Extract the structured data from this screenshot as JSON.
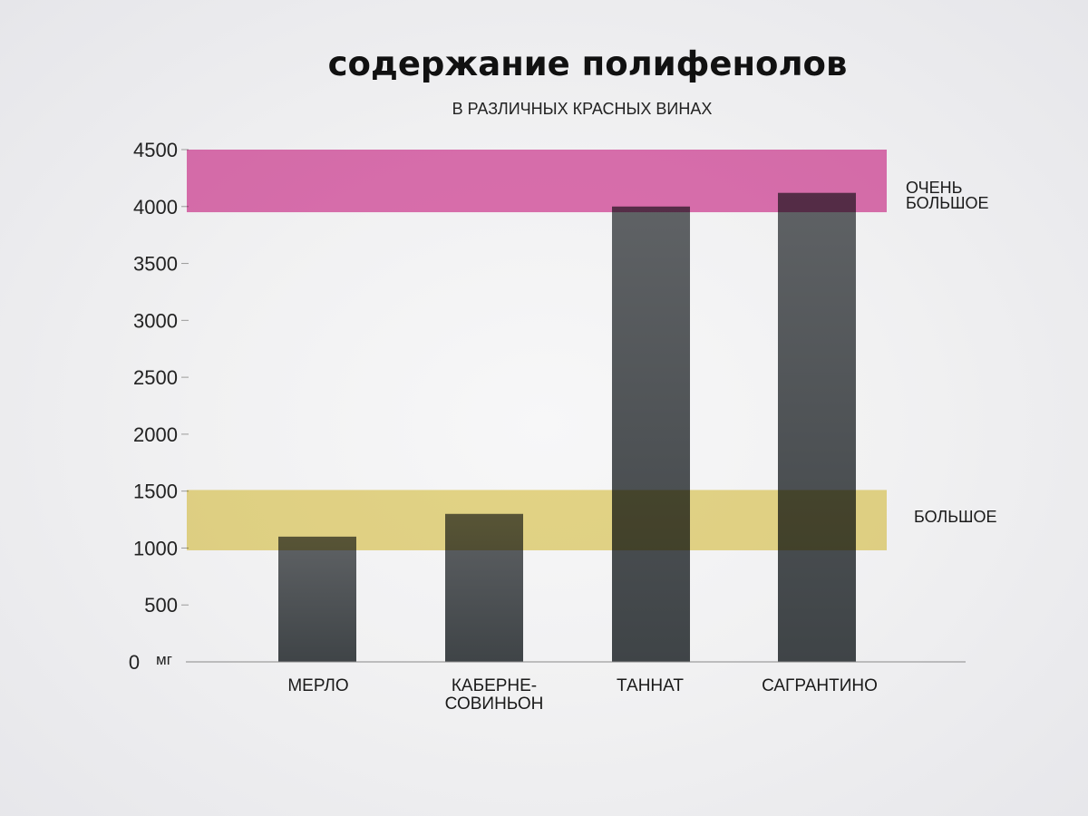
{
  "chart_data": {
    "type": "bar",
    "title": "содержание полифенолов",
    "subtitle": "В РАЗЛИЧНЫХ КРАСНЫХ ВИНАХ",
    "unit": "мг",
    "categories": [
      {
        "label_lines": [
          "МЕРЛО"
        ]
      },
      {
        "label_lines": [
          "КАБЕРНЕ-",
          "СОВИНЬОН"
        ]
      },
      {
        "label_lines": [
          "ТАННАТ"
        ]
      },
      {
        "label_lines": [
          "САГРАНТИНО"
        ]
      }
    ],
    "values": [
      1100,
      1300,
      4000,
      4120
    ],
    "ylim": [
      0,
      4500
    ],
    "yticks": [
      "0",
      "500",
      "1000",
      "1500",
      "2000",
      "2500",
      "3000",
      "3500",
      "4000",
      "4500"
    ],
    "bands": [
      {
        "name": "very-high",
        "range": [
          3950,
          4500
        ],
        "label_lines": [
          "ОЧЕНЬ",
          "БОЛЬШОЕ"
        ],
        "color": "#de5aa6"
      },
      {
        "name": "high",
        "range": [
          980,
          1510
        ],
        "label_lines": [
          "БОЛЬШОЕ"
        ],
        "color": "#e8d574"
      }
    ],
    "colors": {
      "bar_top": "#5f6265",
      "bar_bottom": "#3f4447",
      "axis": "#888888",
      "text": "#1a1a1a"
    }
  }
}
